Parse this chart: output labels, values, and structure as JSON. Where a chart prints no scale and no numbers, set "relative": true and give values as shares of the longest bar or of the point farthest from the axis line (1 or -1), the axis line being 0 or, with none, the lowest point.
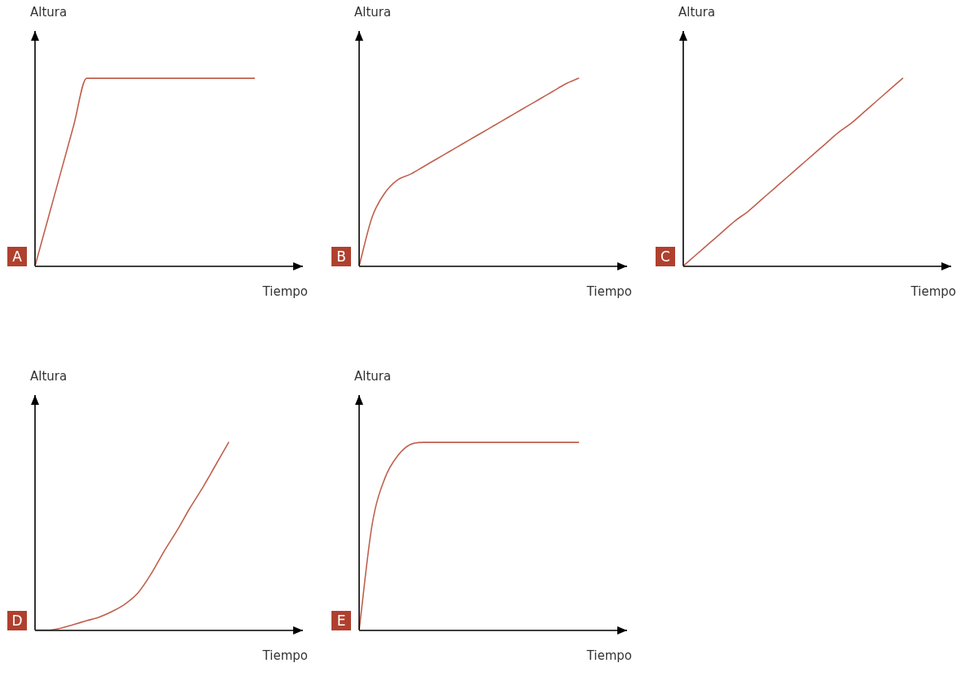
{
  "chart_data": [
    {
      "type": "line",
      "relative": true,
      "ylabel": "Altura",
      "xlabel": "Tiempo",
      "annotations": [
        "A"
      ],
      "grid": false,
      "marker": "none",
      "categories": [
        null,
        null,
        null,
        null,
        null,
        null,
        null,
        null,
        null,
        null,
        null,
        null,
        null,
        null,
        null,
        null,
        null,
        null,
        null,
        null,
        null
      ],
      "series": [
        {
          "color": "#c0604e",
          "values": [
            0,
            0.25,
            0.5,
            0.75,
            1,
            1,
            1,
            1,
            1,
            1,
            1,
            1,
            1,
            1,
            1,
            1,
            1,
            1,
            null,
            null,
            null
          ]
        }
      ]
    },
    {
      "type": "line",
      "relative": true,
      "ylabel": "Altura",
      "xlabel": "Tiempo",
      "annotations": [
        "B"
      ],
      "grid": false,
      "marker": "none",
      "categories": [
        null,
        null,
        null,
        null,
        null,
        null,
        null,
        null,
        null,
        null,
        null,
        null,
        null,
        null,
        null,
        null,
        null,
        null,
        null,
        null,
        null
      ],
      "series": [
        {
          "color": "#c0604e",
          "values": [
            0,
            0.26,
            0.39,
            0.46,
            0.49,
            0.53,
            0.57,
            0.61,
            0.65,
            0.69,
            0.73,
            0.77,
            0.81,
            0.85,
            0.89,
            0.93,
            0.97,
            1,
            null,
            null,
            null
          ]
        }
      ]
    },
    {
      "type": "line",
      "relative": true,
      "ylabel": "Altura",
      "xlabel": "Tiempo",
      "annotations": [
        "C"
      ],
      "grid": false,
      "marker": "none",
      "categories": [
        null,
        null,
        null,
        null,
        null,
        null,
        null,
        null,
        null,
        null,
        null,
        null,
        null,
        null,
        null,
        null,
        null,
        null,
        null,
        null,
        null
      ],
      "series": [
        {
          "color": "#c0604e",
          "values": [
            0,
            0.06,
            0.12,
            0.18,
            0.24,
            0.29,
            0.35,
            0.41,
            0.47,
            0.53,
            0.59,
            0.65,
            0.71,
            0.76,
            0.82,
            0.88,
            0.94,
            1,
            null,
            null,
            null
          ]
        }
      ]
    },
    {
      "type": "line",
      "relative": true,
      "ylabel": "Altura",
      "xlabel": "Tiempo",
      "annotations": [
        "D"
      ],
      "grid": false,
      "marker": "none",
      "categories": [
        null,
        null,
        null,
        null,
        null,
        null,
        null,
        null,
        null,
        null,
        null,
        null,
        null,
        null,
        null,
        null,
        null,
        null,
        null,
        null,
        null
      ],
      "series": [
        {
          "color": "#c0604e",
          "values": [
            0,
            0,
            0.01,
            0.03,
            0.05,
            0.07,
            0.1,
            0.14,
            0.2,
            0.3,
            0.42,
            0.53,
            0.65,
            0.76,
            0.88,
            1,
            null,
            null,
            null,
            null,
            null
          ]
        }
      ]
    },
    {
      "type": "line",
      "relative": true,
      "ylabel": "Altura",
      "xlabel": "Tiempo",
      "annotations": [
        "E"
      ],
      "grid": false,
      "marker": "none",
      "categories": [
        null,
        null,
        null,
        null,
        null,
        null,
        null,
        null,
        null,
        null,
        null,
        null,
        null,
        null,
        null,
        null,
        null,
        null,
        null,
        null,
        null
      ],
      "series": [
        {
          "color": "#c0604e",
          "values": [
            0,
            0.56,
            0.81,
            0.93,
            0.99,
            1,
            1,
            1,
            1,
            1,
            1,
            1,
            1,
            1,
            1,
            1,
            1,
            1,
            null,
            null,
            null
          ]
        }
      ]
    }
  ]
}
